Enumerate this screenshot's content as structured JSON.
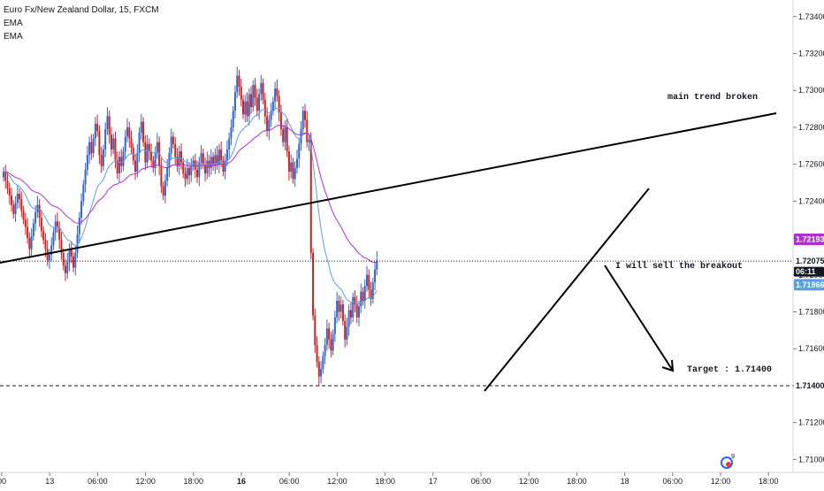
{
  "legend": {
    "symbol": "Euro Fx/New Zealand Dollar, 15, FXCM",
    "ema1": "EMA",
    "ema2": "EMA"
  },
  "annotations": {
    "trend": "main trend broken",
    "sell": "I will sell the breakout",
    "target": "Target : 1.71400"
  },
  "price_tags": {
    "ema_slow": "1.72193",
    "last": "1.72075",
    "countdown": "06:11",
    "ema_fast": "1.71966",
    "target": "1.71400"
  },
  "colors": {
    "up_candle": "#3366cc",
    "down_candle": "#d22222",
    "ema_fast": "#5aa0e6",
    "ema_slow": "#b030d0",
    "trendline": "#000000",
    "grid": "#ffffff"
  },
  "chart_data": {
    "type": "candlestick",
    "title": "Euro Fx/New Zealand Dollar, 15, FXCM",
    "y_ticks": [
      "1.73400",
      "1.73200",
      "1.73000",
      "1.72800",
      "1.72600",
      "1.72400",
      "1.72200",
      "1.72000",
      "1.71800",
      "1.71600",
      "1.71400",
      "1.71200",
      "1.71000"
    ],
    "y_tick_values": [
      1.734,
      1.732,
      1.73,
      1.728,
      1.726,
      1.724,
      1.722,
      1.72,
      1.718,
      1.716,
      1.714,
      1.712,
      1.71
    ],
    "ylim": [
      1.7093,
      1.7349
    ],
    "x_ticks": [
      "00",
      "13",
      "06:00",
      "12:00",
      "18:00",
      "16",
      "06:00",
      "12:00",
      "18:00",
      "17",
      "06:00",
      "12:00",
      "18:00",
      "18",
      "06:00",
      "12:00",
      "18:00"
    ],
    "x_tick_bold": [
      false,
      false,
      false,
      false,
      false,
      true,
      false,
      false,
      false,
      false,
      false,
      false,
      false,
      false,
      false,
      false,
      false
    ],
    "bars_per_tick": 24,
    "ema_fast_last": 1.71966,
    "ema_slow_last": 1.72193,
    "last_price": 1.72075,
    "target_price": 1.714,
    "closes": [
      1.7256,
      1.7251,
      1.7247,
      1.7243,
      1.7238,
      1.7233,
      1.7239,
      1.7244,
      1.7241,
      1.7235,
      1.723,
      1.7226,
      1.722,
      1.7214,
      1.7221,
      1.7228,
      1.7234,
      1.7238,
      1.7231,
      1.7224,
      1.7219,
      1.7214,
      1.7208,
      1.7211,
      1.7216,
      1.7223,
      1.7229,
      1.7226,
      1.7219,
      1.7212,
      1.7205,
      1.7201,
      1.7207,
      1.7214,
      1.721,
      1.7204,
      1.7212,
      1.7222,
      1.7231,
      1.724,
      1.7249,
      1.7257,
      1.7265,
      1.7272,
      1.7266,
      1.7274,
      1.7282,
      1.7278,
      1.7265,
      1.7259,
      1.7268,
      1.7279,
      1.7286,
      1.7276,
      1.7268,
      1.7274,
      1.7262,
      1.7255,
      1.7264,
      1.7259,
      1.7267,
      1.7275,
      1.728,
      1.7274,
      1.7269,
      1.7262,
      1.7256,
      1.7266,
      1.7277,
      1.7283,
      1.7272,
      1.7261,
      1.7271,
      1.7267,
      1.7262,
      1.7258,
      1.7266,
      1.7272,
      1.7259,
      1.7248,
      1.7243,
      1.7251,
      1.7258,
      1.7266,
      1.7275,
      1.7271,
      1.7264,
      1.7259,
      1.7267,
      1.7261,
      1.7255,
      1.7252,
      1.7258,
      1.7254,
      1.7259,
      1.7262,
      1.7257,
      1.7253,
      1.7261,
      1.7266,
      1.726,
      1.7255,
      1.7262,
      1.7258,
      1.7264,
      1.7259,
      1.7265,
      1.726,
      1.7268,
      1.7262,
      1.7256,
      1.7262,
      1.7268,
      1.7274,
      1.728,
      1.7289,
      1.7299,
      1.7308,
      1.7302,
      1.7295,
      1.7287,
      1.7294,
      1.7286,
      1.7298,
      1.7291,
      1.7303,
      1.7296,
      1.7289,
      1.7298,
      1.7304,
      1.7295,
      1.7286,
      1.7278,
      1.7284,
      1.7289,
      1.7294,
      1.7301,
      1.7297,
      1.7288,
      1.7279,
      1.7272,
      1.728,
      1.7267,
      1.7256,
      1.7261,
      1.7252,
      1.7258,
      1.7263,
      1.7271,
      1.7279,
      1.7289,
      1.7284,
      1.7272,
      1.7273,
      1.7212,
      1.7178,
      1.7162,
      1.7153,
      1.7145,
      1.7149,
      1.7156,
      1.7162,
      1.7171,
      1.7165,
      1.7159,
      1.7168,
      1.7177,
      1.7186,
      1.718,
      1.7184,
      1.7175,
      1.7165,
      1.7172,
      1.7181,
      1.7177,
      1.7188,
      1.7184,
      1.7177,
      1.7183,
      1.7191,
      1.7186,
      1.7194,
      1.72,
      1.7192,
      1.7187,
      1.7196,
      1.7203,
      1.7208
    ]
  }
}
